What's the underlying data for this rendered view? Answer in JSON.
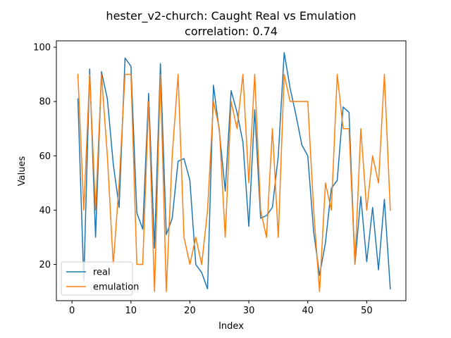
{
  "chart_data": {
    "type": "line",
    "title": "hester_v2-church: Caught Real vs Emulation",
    "subtitle": "correlation: 0.74",
    "xlabel": "Index",
    "ylabel": "Values",
    "xlim": [
      -2.65,
      56.65
    ],
    "ylim": [
      6.65,
      102.35
    ],
    "xticks": [
      0,
      10,
      20,
      30,
      40,
      50
    ],
    "yticks": [
      20,
      40,
      60,
      80,
      100
    ],
    "grid": false,
    "legend_position": "lower-left",
    "x": [
      1,
      2,
      3,
      4,
      5,
      6,
      7,
      8,
      9,
      10,
      11,
      12,
      13,
      14,
      15,
      16,
      17,
      18,
      19,
      20,
      21,
      22,
      23,
      24,
      25,
      26,
      27,
      28,
      29,
      30,
      31,
      32,
      33,
      34,
      35,
      36,
      37,
      38,
      39,
      40,
      41,
      42,
      43,
      44,
      45,
      46,
      47,
      48,
      49,
      50,
      51,
      52,
      53,
      54
    ],
    "series": [
      {
        "name": "real",
        "color": "#1f77b4",
        "values": [
          81,
          14,
          92,
          30,
          91,
          81,
          57,
          41,
          96,
          93,
          39,
          33,
          83,
          26,
          94,
          31,
          37,
          58,
          59,
          51,
          20,
          17,
          11,
          86,
          69,
          47,
          84,
          76,
          65,
          34,
          77,
          37,
          38,
          41,
          60,
          98,
          85,
          75,
          64,
          60,
          32,
          16,
          28,
          48,
          51,
          78,
          76,
          20,
          45,
          21,
          41,
          18,
          44,
          11
        ]
      },
      {
        "name": "emulation",
        "color": "#ff7f0e",
        "values": [
          90,
          40,
          90,
          40,
          90,
          60,
          20,
          50,
          90,
          90,
          20,
          20,
          80,
          10,
          90,
          10,
          60,
          90,
          30,
          20,
          30,
          20,
          40,
          80,
          70,
          30,
          80,
          70,
          90,
          50,
          90,
          40,
          30,
          70,
          30,
          90,
          80,
          80,
          80,
          80,
          40,
          10,
          50,
          40,
          90,
          70,
          70,
          20,
          70,
          40,
          60,
          50,
          90,
          40
        ]
      }
    ]
  }
}
